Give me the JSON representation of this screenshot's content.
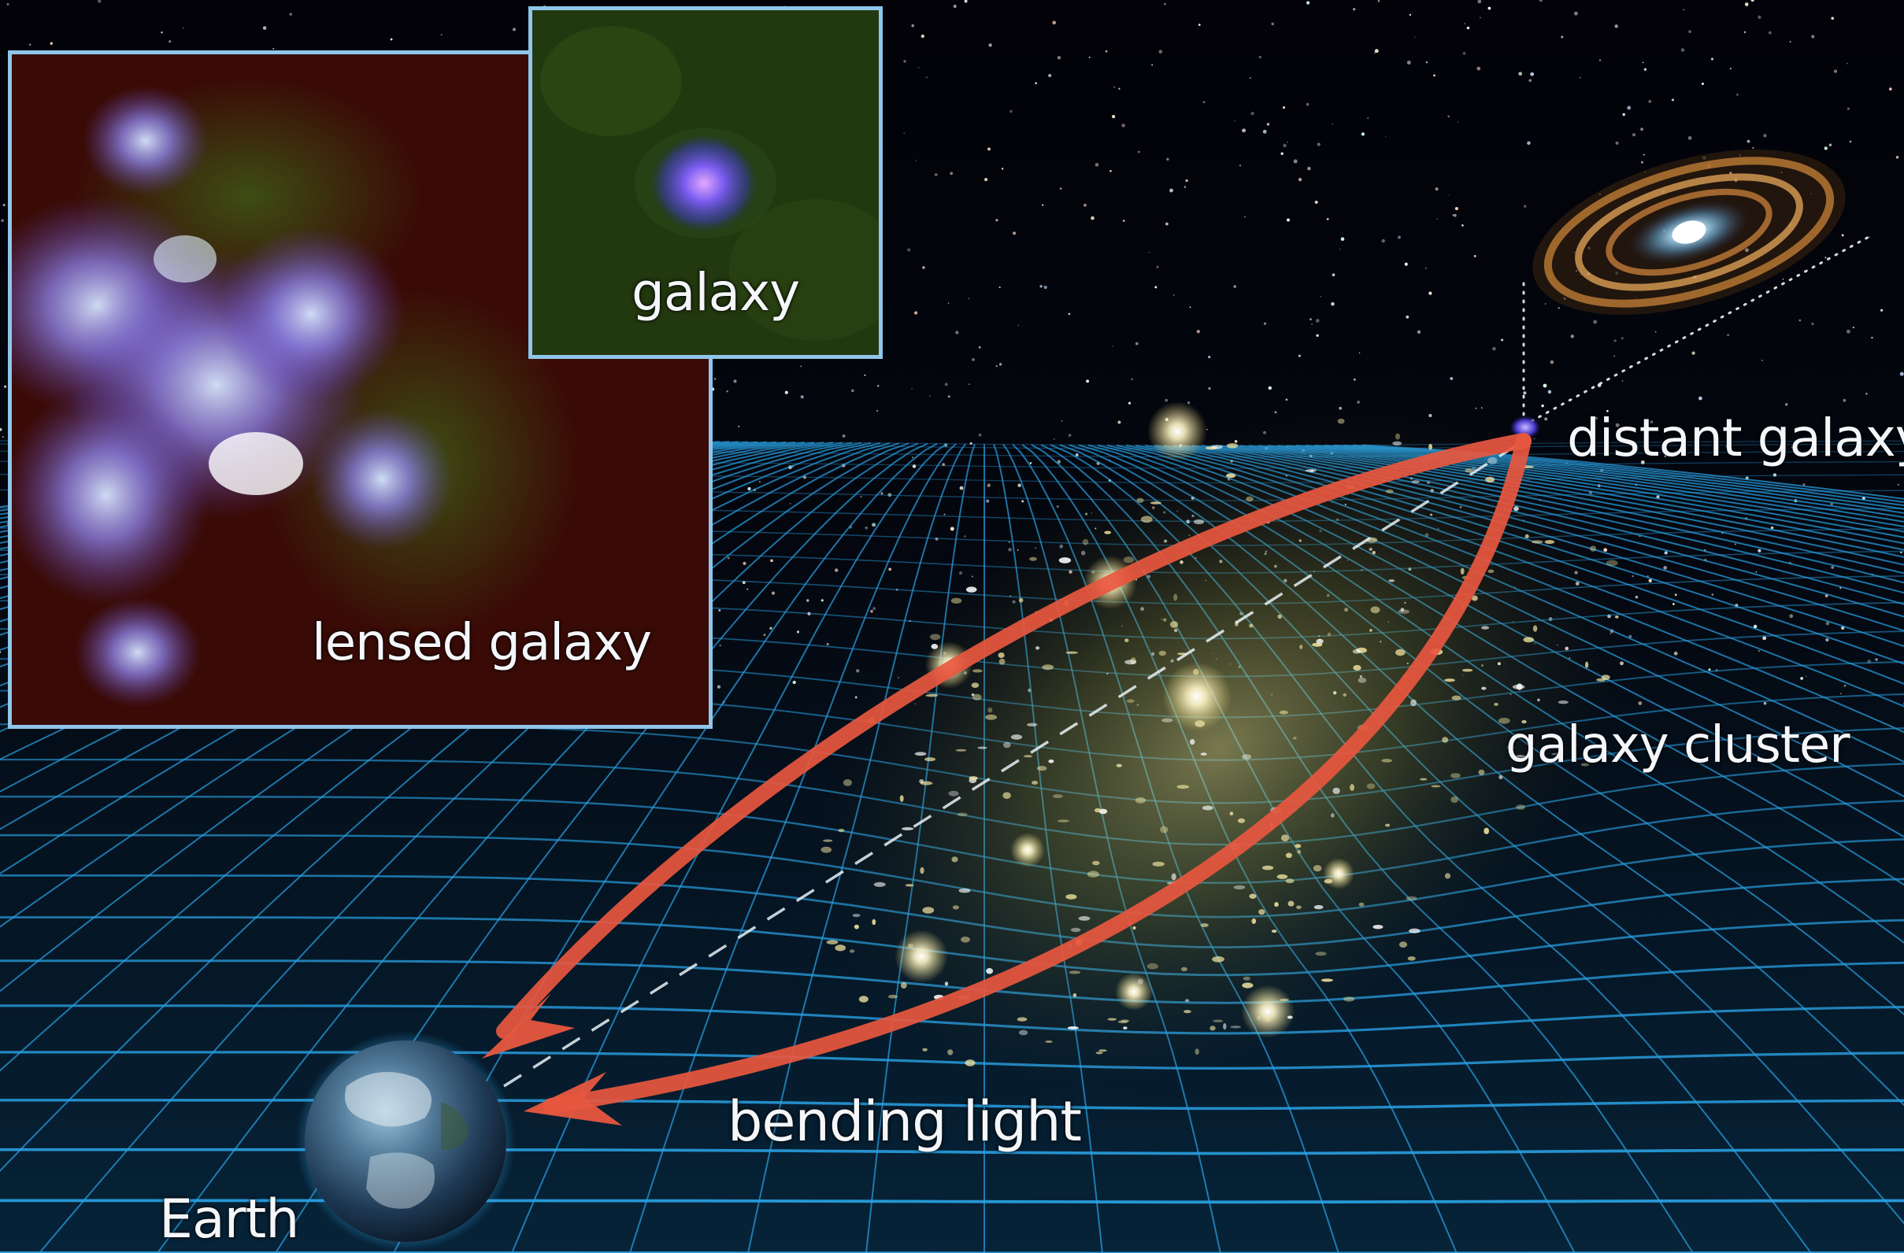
{
  "labels": {
    "lensed_galaxy": "lensed galaxy",
    "galaxy": "galaxy",
    "distant_galaxy": "distant galaxy",
    "galaxy_cluster": "galaxy cluster",
    "bending_light": "bending light",
    "earth": "Earth"
  },
  "colors": {
    "grid": "#2aa3e6",
    "light_arrow": "#e8573f",
    "inset_border": "#8fc6ea",
    "lensed_inset_bg": "#3a0b06",
    "galaxy_inset_bg": "#1e3310",
    "cluster_glow": "#c9c070",
    "label_text": "#f4f6fa"
  }
}
